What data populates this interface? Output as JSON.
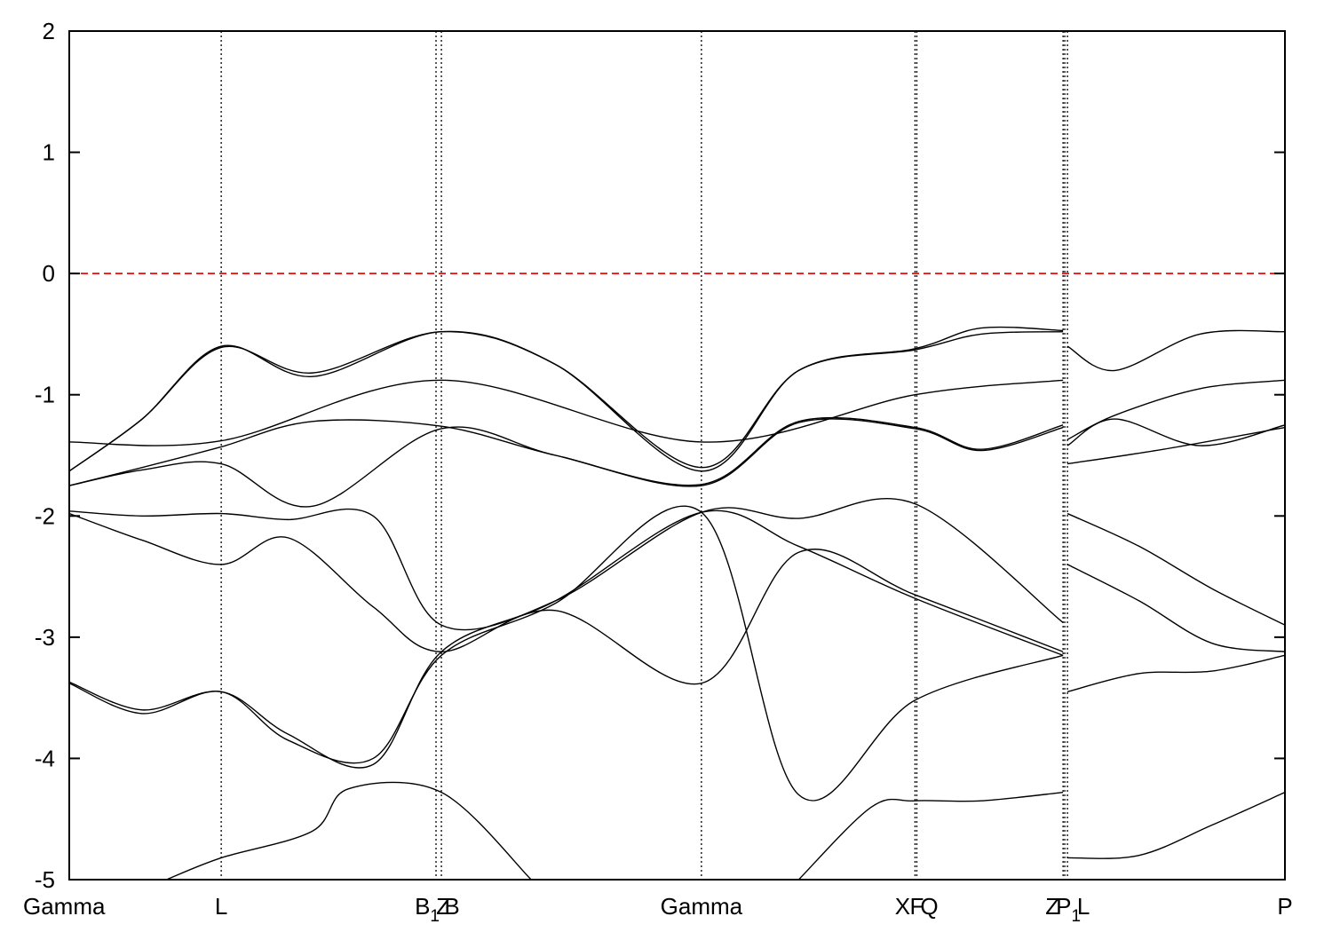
{
  "chart_data": {
    "type": "line",
    "title": "",
    "xlabel": "",
    "ylabel": "",
    "ylim": [
      -5,
      2
    ],
    "yticks": [
      2,
      1,
      0,
      -1,
      -2,
      -3,
      -4,
      -5
    ],
    "ytick_labels": [
      "2",
      "1",
      "0",
      "-1",
      "-2",
      "-3",
      "-4",
      "-5"
    ],
    "grid": false,
    "xlim": [
      0,
      1
    ],
    "kpoints": [
      {
        "x": 0.0,
        "label": "Gamma",
        "sub": ""
      },
      {
        "x": 0.125,
        "label": "L",
        "sub": ""
      },
      {
        "x": 0.3017,
        "label": "B",
        "sub": "1"
      },
      {
        "x": 0.3061,
        "label": "Z",
        "sub": ""
      },
      {
        "x": 0.3061,
        "label": "B",
        "sub": ""
      },
      {
        "x": 0.52,
        "label": "Gamma",
        "sub": ""
      },
      {
        "x": 0.6957,
        "label": "X",
        "sub": ""
      },
      {
        "x": 0.6972,
        "label": "F",
        "sub": ""
      },
      {
        "x": 0.6972,
        "label": "Q",
        "sub": ""
      },
      {
        "x": 0.8175,
        "label": "Z",
        "sub": ""
      },
      {
        "x": 0.8189,
        "label": "P",
        "sub": "1"
      },
      {
        "x": 0.8211,
        "label": "L",
        "sub": ""
      },
      {
        "x": 1.0,
        "label": "P",
        "sub": ""
      }
    ],
    "vlines": [
      0.125,
      0.3017,
      0.3061,
      0.52,
      0.6957,
      0.6972,
      0.8175,
      0.8189,
      0.8211
    ],
    "fermi_level": {
      "y": 0,
      "color": "#e01010",
      "style": "dashed"
    },
    "line_color": "#000000",
    "series": [
      {
        "x": [
          0,
          0.06,
          0.125,
          0.2,
          0.3061,
          0.4,
          0.52,
          0.6,
          0.6957,
          0.75,
          0.8175
        ],
        "y": [
          -1.63,
          -1.2,
          -0.6,
          -0.85,
          -0.48,
          -0.75,
          -1.63,
          -0.8,
          -0.62,
          -0.45,
          -0.47
        ]
      },
      {
        "x": [
          0,
          0.06,
          0.125,
          0.2,
          0.3061,
          0.4,
          0.52,
          0.6,
          0.6957,
          0.75,
          0.8175
        ],
        "y": [
          -1.63,
          -1.2,
          -0.61,
          -0.82,
          -0.48,
          -0.75,
          -1.6,
          -0.8,
          -0.63,
          -0.5,
          -0.48
        ]
      },
      {
        "x": [
          0,
          0.125,
          0.3061,
          0.52,
          0.6957,
          0.8175
        ],
        "y": [
          -1.39,
          -1.38,
          -0.88,
          -1.39,
          -1.0,
          -0.88
        ]
      },
      {
        "x": [
          0,
          0.06,
          0.125,
          0.2,
          0.3061,
          0.4,
          0.52,
          0.6,
          0.6957,
          0.75,
          0.8175
        ],
        "y": [
          -1.75,
          -1.6,
          -1.43,
          -1.22,
          -1.26,
          -1.5,
          -1.74,
          -1.22,
          -1.27,
          -1.45,
          -1.25
        ]
      },
      {
        "x": [
          0,
          0.06,
          0.125,
          0.2,
          0.3061,
          0.4,
          0.52,
          0.6,
          0.6957,
          0.75,
          0.8175
        ],
        "y": [
          -1.75,
          -1.62,
          -1.57,
          -1.92,
          -1.28,
          -1.5,
          -1.75,
          -1.23,
          -1.28,
          -1.46,
          -1.27
        ]
      },
      {
        "x": [
          0,
          0.06,
          0.125,
          0.18,
          0.25,
          0.3061,
          0.4,
          0.52,
          0.6,
          0.6957,
          0.8175
        ],
        "y": [
          -1.96,
          -2.0,
          -1.98,
          -2.03,
          -2.0,
          -2.9,
          -2.7,
          -1.97,
          -2.02,
          -1.9,
          -2.88
        ]
      },
      {
        "x": [
          0,
          0.06,
          0.125,
          0.18,
          0.25,
          0.3061,
          0.4,
          0.52,
          0.6,
          0.6957,
          0.8175
        ],
        "y": [
          -1.98,
          -2.2,
          -2.4,
          -2.18,
          -2.75,
          -3.12,
          -2.78,
          -3.38,
          -2.3,
          -2.65,
          -3.12
        ]
      },
      {
        "x": [
          0,
          0.06,
          0.125,
          0.18,
          0.25,
          0.3061,
          0.4,
          0.52,
          0.6,
          0.6957,
          0.8175
        ],
        "y": [
          -3.37,
          -3.6,
          -3.45,
          -3.8,
          -4.05,
          -3.12,
          -2.7,
          -1.97,
          -2.25,
          -2.68,
          -3.15
        ]
      },
      {
        "x": [
          0,
          0.06,
          0.125,
          0.18,
          0.25,
          0.3061,
          0.4,
          0.52,
          0.6,
          0.6957,
          0.8175
        ],
        "y": [
          -3.38,
          -3.63,
          -3.45,
          -3.85,
          -4.0,
          -3.15,
          -2.72,
          -1.97,
          -4.3,
          -3.52,
          -3.15
        ]
      },
      {
        "x": [
          0.08,
          0.125,
          0.2,
          0.23,
          0.3061,
          0.38
        ],
        "y": [
          -5.0,
          -4.82,
          -4.6,
          -4.25,
          -4.28,
          -5.0
        ]
      },
      {
        "x": [
          0.6,
          0.66,
          0.6957,
          0.75,
          0.8175
        ],
        "y": [
          -5.0,
          -4.4,
          -4.35,
          -4.35,
          -4.28
        ]
      },
      {
        "x": [
          0.8211,
          0.86,
          0.93,
          1.0
        ],
        "y": [
          -0.6,
          -0.8,
          -0.5,
          -0.48
        ]
      },
      {
        "x": [
          0.8211,
          0.86,
          0.93,
          1.0
        ],
        "y": [
          -1.37,
          -1.17,
          -0.95,
          -0.88
        ]
      },
      {
        "x": [
          0.8211,
          0.86,
          0.93,
          1.0
        ],
        "y": [
          -1.42,
          -1.2,
          -1.42,
          -1.25
        ]
      },
      {
        "x": [
          0.8211,
          0.9,
          1.0
        ],
        "y": [
          -1.57,
          -1.45,
          -1.27
        ]
      },
      {
        "x": [
          0.8211,
          0.88,
          0.94,
          1.0
        ],
        "y": [
          -1.98,
          -2.25,
          -2.6,
          -2.9
        ]
      },
      {
        "x": [
          0.8211,
          0.88,
          0.94,
          1.0
        ],
        "y": [
          -2.4,
          -2.7,
          -3.05,
          -3.12
        ]
      },
      {
        "x": [
          0.8211,
          0.88,
          0.94,
          1.0
        ],
        "y": [
          -3.45,
          -3.3,
          -3.28,
          -3.15
        ]
      },
      {
        "x": [
          0.8211,
          0.88,
          0.94,
          1.0
        ],
        "y": [
          -4.82,
          -4.8,
          -4.55,
          -4.28
        ]
      }
    ]
  }
}
